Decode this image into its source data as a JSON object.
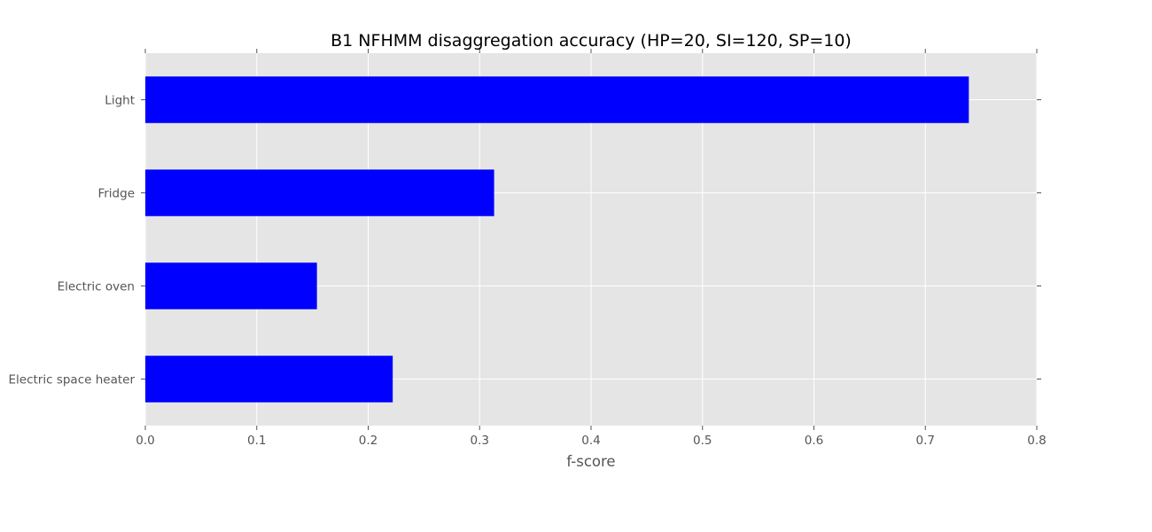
{
  "chart_data": {
    "type": "bar",
    "orientation": "horizontal",
    "title": "B1 NFHMM disaggregation accuracy (HP=20, SI=120, SP=10)",
    "xlabel": "f-score",
    "ylabel": "",
    "categories": [
      "Light",
      "Fridge",
      "Electric oven",
      "Electric space heater"
    ],
    "values": [
      0.739,
      0.313,
      0.154,
      0.222
    ],
    "xlim": [
      0,
      0.8
    ],
    "xticks": [
      "0.0",
      "0.1",
      "0.2",
      "0.3",
      "0.4",
      "0.5",
      "0.6",
      "0.7",
      "0.8"
    ],
    "grid": true,
    "legend": "none",
    "colors": {
      "bar": "#0000ff",
      "plot_background": "#e5e5e5",
      "grid": "#ffffff",
      "tick_text": "#555555",
      "title_text": "#000000"
    }
  }
}
